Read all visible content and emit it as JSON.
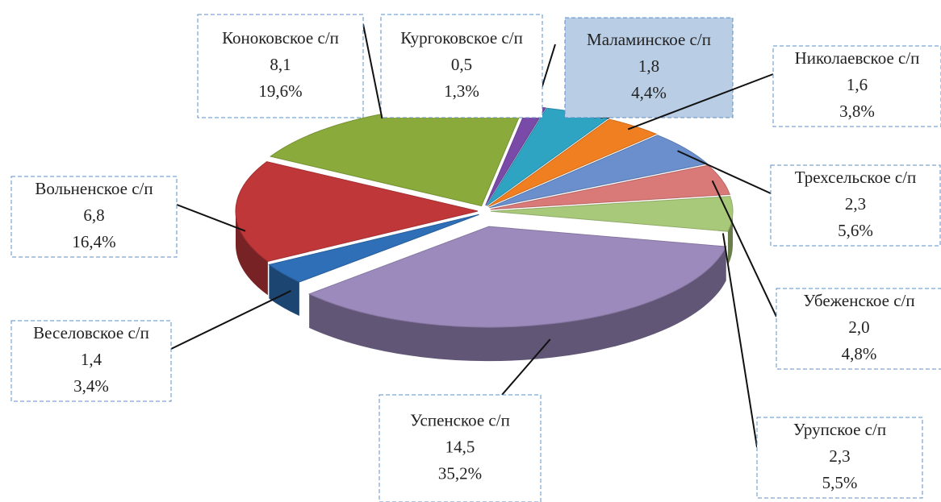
{
  "chart_data": {
    "type": "pie",
    "categories": [
      "Кургоковское с/п",
      "Маламинское с/п",
      "Николаевское с/п",
      "Трехсельское с/п",
      "Убеженское с/п",
      "Урупское с/п",
      "Успенское с/п",
      "Веселовское с/п",
      "Вольненское с/п",
      "Коноковское с/п"
    ],
    "values": [
      0.5,
      1.8,
      1.6,
      2.3,
      2.0,
      2.3,
      14.5,
      1.4,
      6.8,
      8.1
    ],
    "value_labels": [
      "0,5",
      "1,8",
      "1,6",
      "2,3",
      "2,0",
      "2,3",
      "14,5",
      "1,4",
      "6,8",
      "8,1"
    ],
    "percent_labels": [
      "1,3%",
      "4,4%",
      "3,8%",
      "5,6%",
      "4,8%",
      "5,5%",
      "35,2%",
      "3,4%",
      "16,4%",
      "19,6%"
    ],
    "colors": [
      "#7a4aa8",
      "#2fa3c2",
      "#f07f22",
      "#6a8fcc",
      "#d97a78",
      "#a9c97a",
      "#9c8abc",
      "#2f6fb7",
      "#c0373a",
      "#8aab3c"
    ]
  }
}
